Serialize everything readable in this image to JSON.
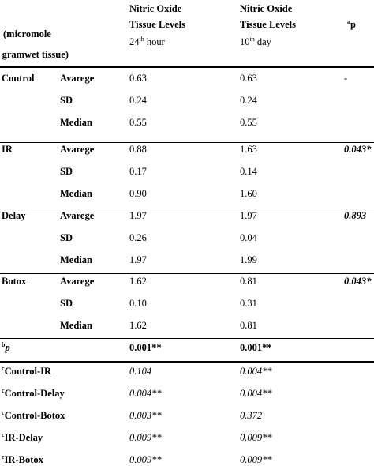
{
  "header": {
    "unit_line1": "(micromole",
    "unit_line2": "/ gramwet tissue)",
    "col1_line1": "Nitric Oxide",
    "col1_line2": "Tissue  Levels",
    "col1_time_num": "24",
    "col1_time_sup": "th",
    "col1_time_unit": " hour",
    "col2_line1": "Nitric Oxide",
    "col2_line2": "Tissue  Levels",
    "col2_time_num": "10",
    "col2_time_sup": "th",
    "col2_time_unit": " day",
    "p_sup": "a",
    "p_label": "p"
  },
  "groups": [
    {
      "name": "Control",
      "rows": [
        {
          "stat": "Avarege",
          "v24": "0.63",
          "v10": "0.63",
          "p": "-"
        },
        {
          "stat": "SD",
          "v24": "0.24",
          "v10": "0.24",
          "p": ""
        },
        {
          "stat": "Median",
          "v24": "0.55",
          "v10": "0.55",
          "p": ""
        }
      ]
    },
    {
      "name": "IR",
      "rows": [
        {
          "stat": "Avarege",
          "v24": "0.88",
          "v10": "1.63",
          "p": "0.043*"
        },
        {
          "stat": "SD",
          "v24": "0.17",
          "v10": "0.14",
          "p": ""
        },
        {
          "stat": "Median",
          "v24": "0.90",
          "v10": "1.60",
          "p": ""
        }
      ]
    },
    {
      "name": "Delay",
      "rows": [
        {
          "stat": "Avarege",
          "v24": "1.97",
          "v10": "1.97",
          "p": "0.893"
        },
        {
          "stat": "SD",
          "v24": "0.26",
          "v10": "0.04",
          "p": ""
        },
        {
          "stat": "Median",
          "v24": "1.97",
          "v10": "1.99",
          "p": ""
        }
      ]
    },
    {
      "name": "Botox",
      "rows": [
        {
          "stat": "Avarege",
          "v24": "1.62",
          "v10": "0.81",
          "p": "0.043*"
        },
        {
          "stat": "SD",
          "v24": "0.10",
          "v10": "0.31",
          "p": ""
        },
        {
          "stat": "Median",
          "v24": "1.62",
          "v10": "0.81",
          "p": ""
        }
      ]
    }
  ],
  "bp_row": {
    "sup": "b",
    "label": "p",
    "v24": "0.001**",
    "v10": "0.001**"
  },
  "comparisons": [
    {
      "sup": "c",
      "label": "Control-IR",
      "v24": "0.104",
      "v10": "0.004**"
    },
    {
      "sup": "c",
      "label": "Control-Delay",
      "v24": "0.004**",
      "v10": "0.004**"
    },
    {
      "sup": "c",
      "label": "Control-Botox",
      "v24": "0.003**",
      "v10": "0.372"
    },
    {
      "sup": "c",
      "label": "IR-Delay",
      "v24": "0.009**",
      "v10": "0.009**"
    },
    {
      "sup": "c",
      "label": "IR-Botox",
      "v24": "0.009**",
      "v10": "0.009**"
    }
  ]
}
